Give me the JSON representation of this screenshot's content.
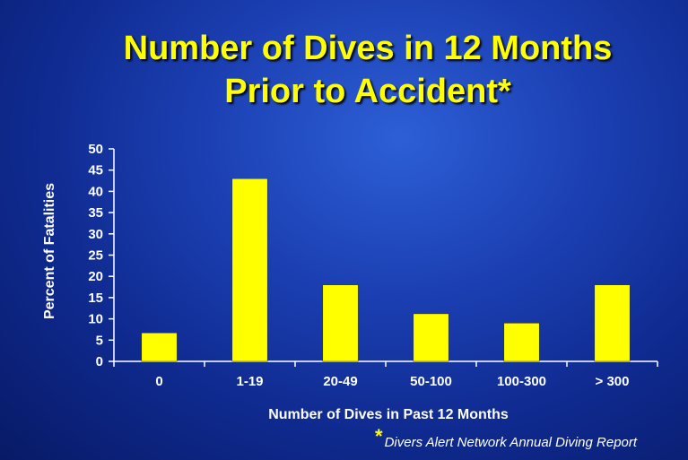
{
  "chart_data": {
    "type": "bar",
    "title_lines": [
      "Number of Dives in 12 Months",
      "Prior to Accident*"
    ],
    "xlabel": "Number of Dives in Past 12 Months",
    "ylabel": "Percent of Fatalities",
    "categories": [
      "0",
      "1-19",
      "20-49",
      "50-100",
      "100-300",
      "> 300"
    ],
    "values": [
      6.7,
      43,
      18,
      11.2,
      9,
      18
    ],
    "ylim": [
      0,
      50
    ],
    "yticks": [
      "0",
      "5",
      "10",
      "15",
      "20",
      "25",
      "30",
      "35",
      "40",
      "45",
      "50"
    ],
    "bar_color": "#ffff00",
    "grid": false,
    "legend": "none"
  },
  "footnote": {
    "marker": "*",
    "text": "Divers Alert Network Annual Diving Report"
  },
  "colors": {
    "title": "#ffff00",
    "text": "#ffffff",
    "background": "#1b3fb2"
  }
}
